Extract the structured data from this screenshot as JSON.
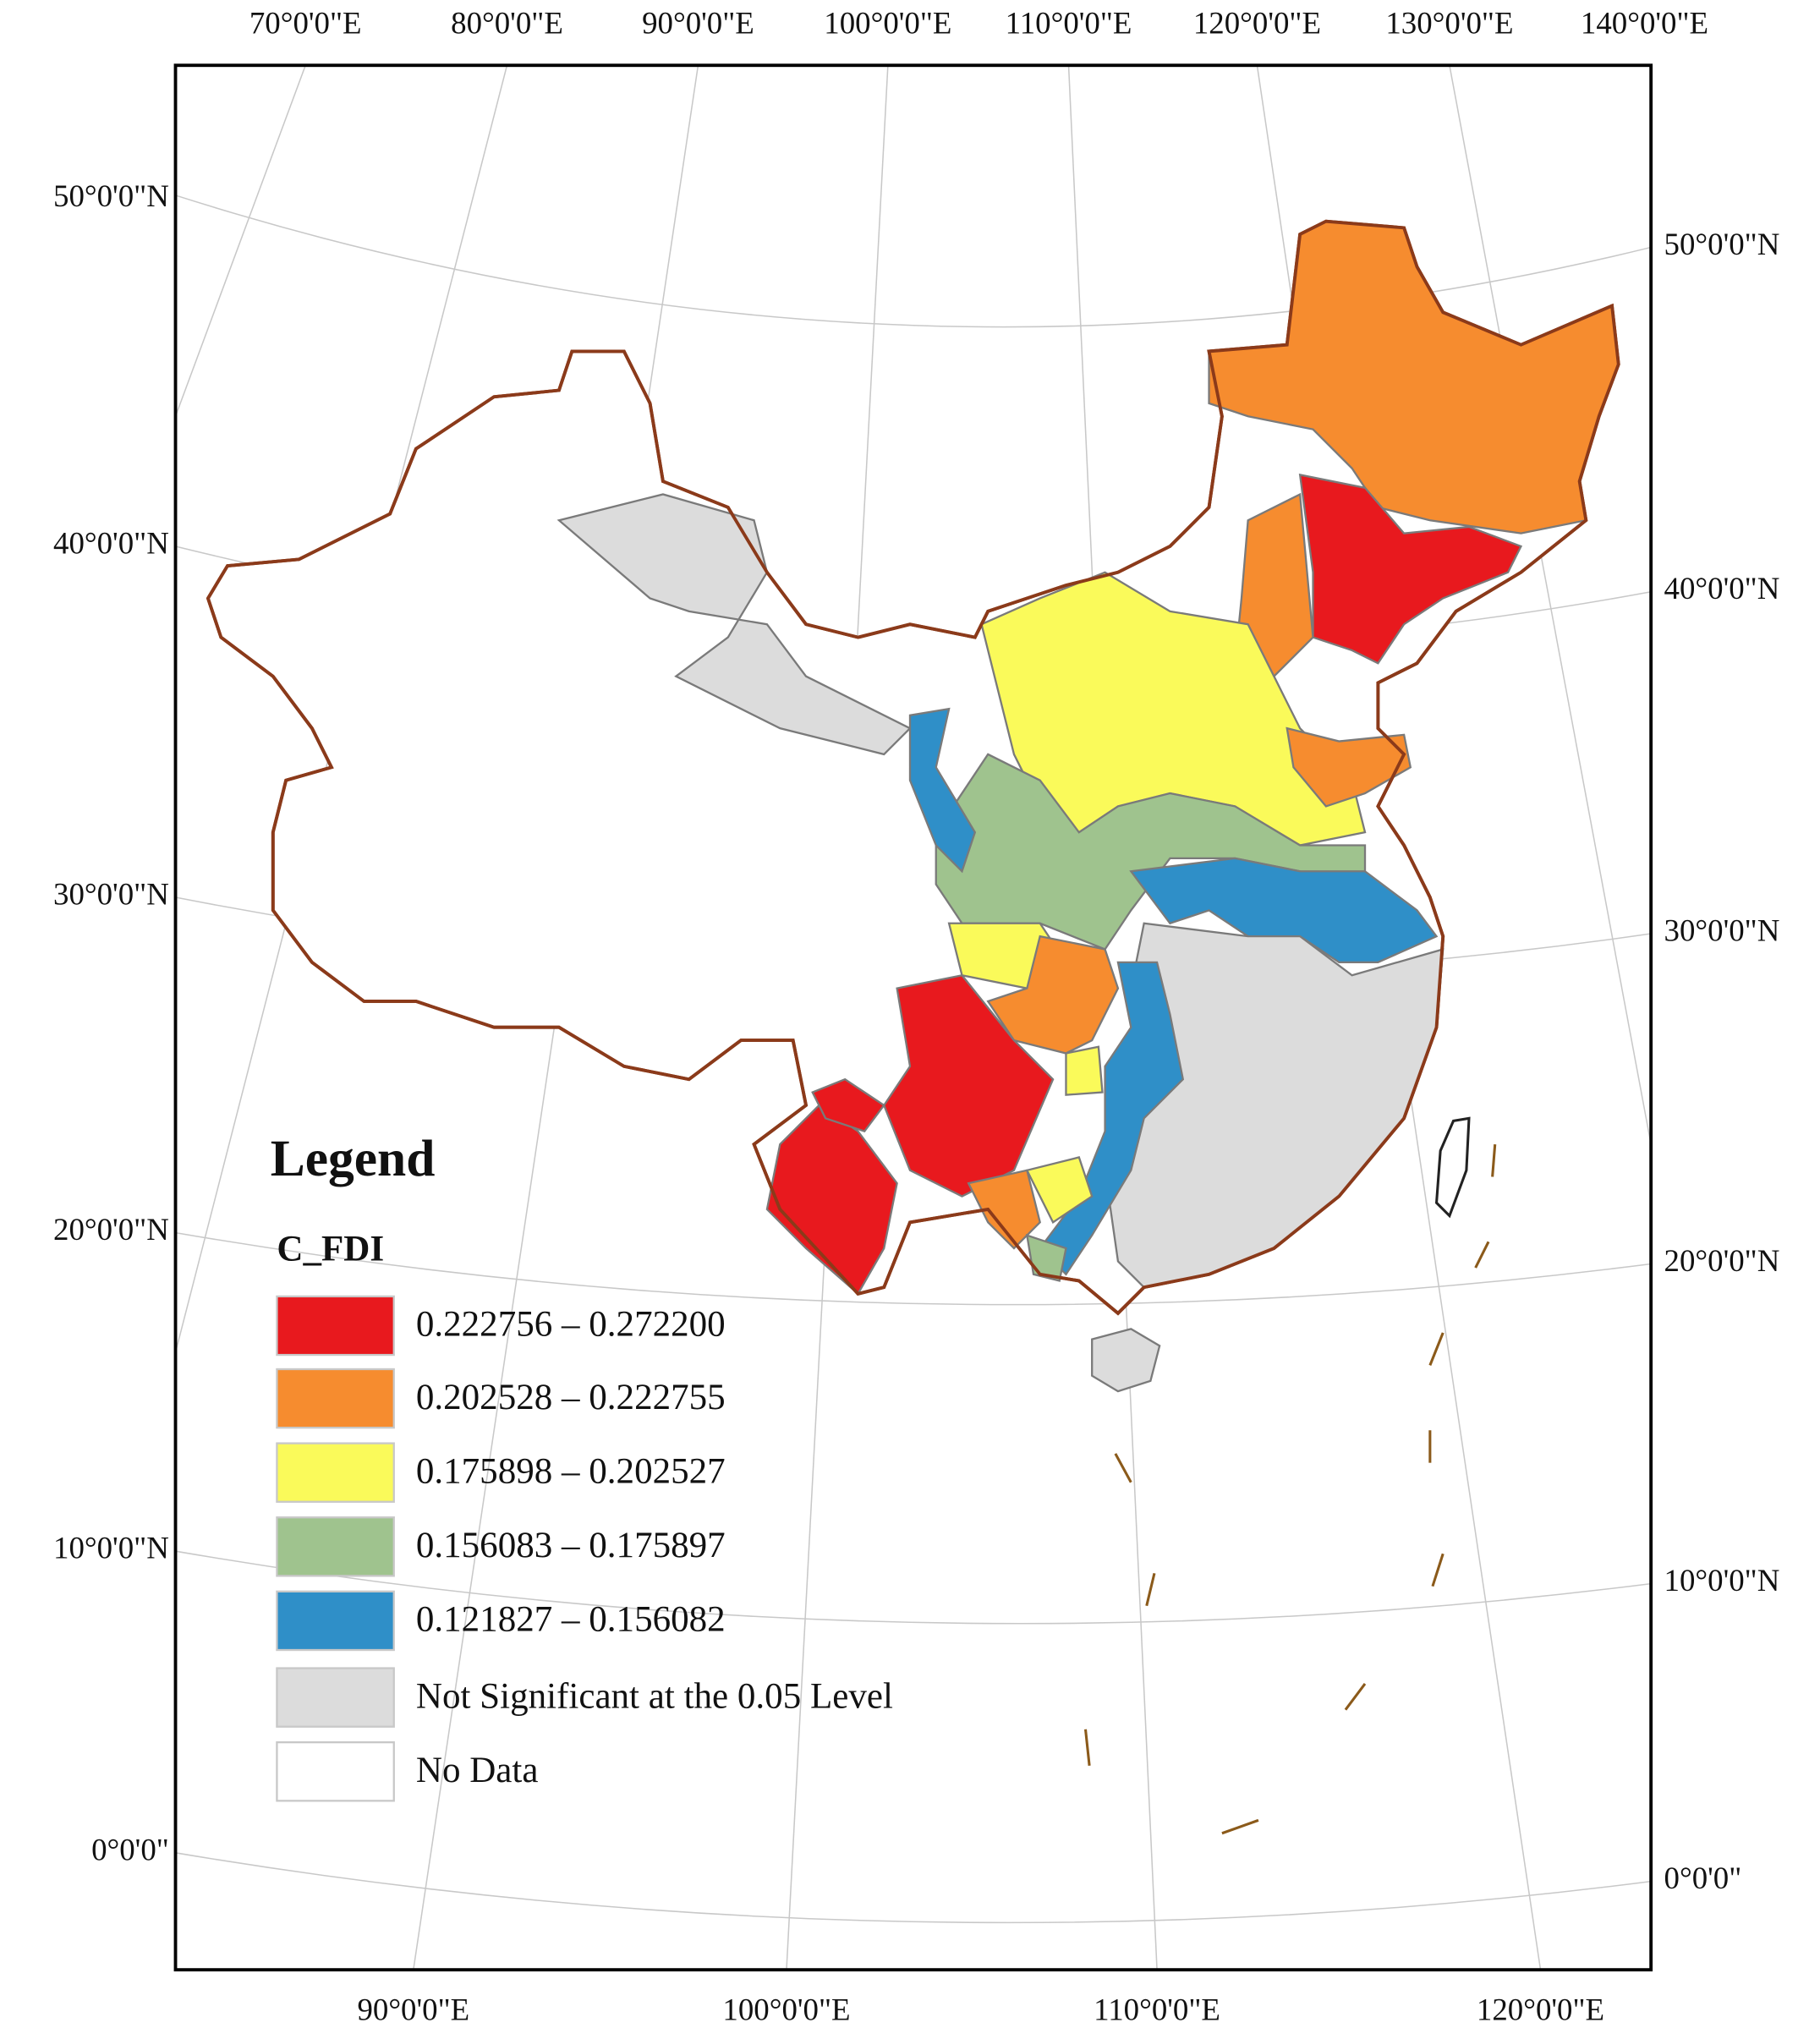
{
  "map": {
    "top_labels": [
      "70°0'0\"E",
      "80°0'0\"E",
      "90°0'0\"E",
      "100°0'0\"E",
      "110°0'0\"E",
      "120°0'0\"E",
      "130°0'0\"E",
      "140°0'0\"E"
    ],
    "bottom_labels": [
      "90°0'0\"E",
      "100°0'0\"E",
      "110°0'0\"E",
      "120°0'0\"E"
    ],
    "left_labels": [
      "50°0'0\"N",
      "40°0'0\"N",
      "30°0'0\"N",
      "20°0'0\"N",
      "10°0'0\"N",
      "0°0'0\""
    ],
    "right_labels": [
      "50°0'0\"N",
      "40°0'0\"N",
      "30°0'0\"N",
      "20°0'0\"N",
      "10°0'0\"N",
      "0°0'0\""
    ],
    "legend": {
      "title": "Legend",
      "field": "C_FDI",
      "classes": [
        {
          "label": "0.222756 – 0.272200",
          "color": "#e8191e"
        },
        {
          "label": "0.202528 – 0.222755",
          "color": "#f68c2f"
        },
        {
          "label": "0.175898 – 0.202527",
          "color": "#fafa5a"
        },
        {
          "label": "0.156083 – 0.175897",
          "color": "#9fc38e"
        },
        {
          "label": "0.121827 – 0.156082",
          "color": "#2f8fc8"
        },
        {
          "label": "Not Significant at the 0.05 Level",
          "color": "#dcdcdc"
        },
        {
          "label": "No Data",
          "color": "#ffffff"
        }
      ]
    }
  }
}
